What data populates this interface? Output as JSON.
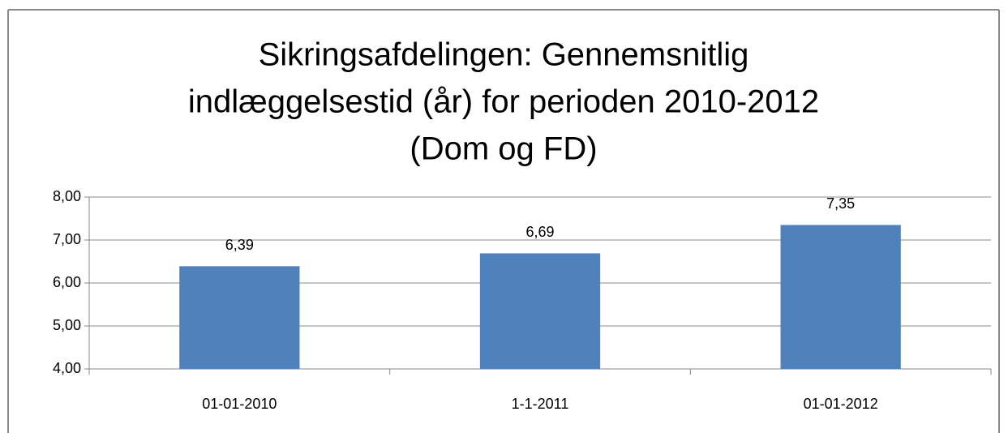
{
  "chart_data": {
    "type": "bar",
    "title": [
      "Sikringsafdelingen: Gennemsnitlig",
      "indlæggelsestid (år) for perioden 2010-2012",
      "(Dom og FD)"
    ],
    "categories": [
      "01-01-2010",
      "1-1-2011",
      "01-01-2012"
    ],
    "values": [
      6.39,
      6.69,
      7.35
    ],
    "value_labels": [
      "6,39",
      "6,69",
      "7,35"
    ],
    "color": "#4f81bd",
    "ylim": [
      4,
      8
    ],
    "yticks": [
      {
        "value": 4,
        "label": "4,00"
      },
      {
        "value": 5,
        "label": "5,00"
      },
      {
        "value": 6,
        "label": "6,00"
      },
      {
        "value": 7,
        "label": "7,00"
      },
      {
        "value": 8,
        "label": "8,00"
      }
    ],
    "grid": true
  }
}
